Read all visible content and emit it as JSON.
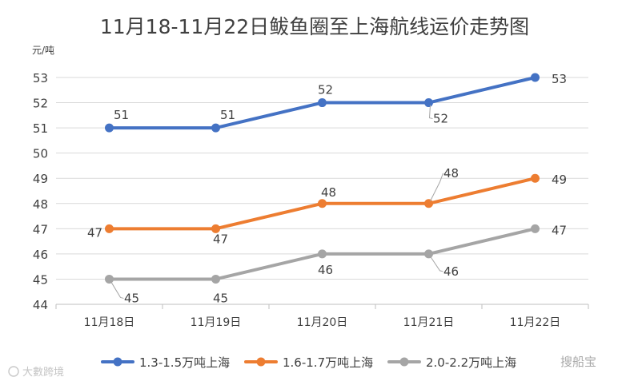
{
  "chart_data": {
    "type": "line",
    "title": "11月18-11月22日鲅鱼圈至上海航线运价走势图",
    "ylabel": "元/吨",
    "xlabel": "",
    "categories": [
      "11月18日",
      "11月19日",
      "11月20日",
      "11月21日",
      "11月22日"
    ],
    "ylim": [
      44,
      53
    ],
    "yticks": [
      44,
      45,
      46,
      47,
      48,
      49,
      50,
      51,
      52,
      53
    ],
    "grid": true,
    "legend_position": "bottom",
    "series": [
      {
        "name": "1.3-1.5万吨上海",
        "color": "#4472C4",
        "values": [
          51,
          51,
          52,
          52,
          53
        ]
      },
      {
        "name": "1.6-1.7万吨上海",
        "color": "#ED7D31",
        "values": [
          47,
          47,
          48,
          48,
          49
        ]
      },
      {
        "name": "2.0-2.2万吨上海",
        "color": "#A5A5A5",
        "values": [
          45,
          45,
          46,
          46,
          47
        ]
      }
    ]
  },
  "watermarks": {
    "left": "大數跨境",
    "right": "搜船宝"
  }
}
